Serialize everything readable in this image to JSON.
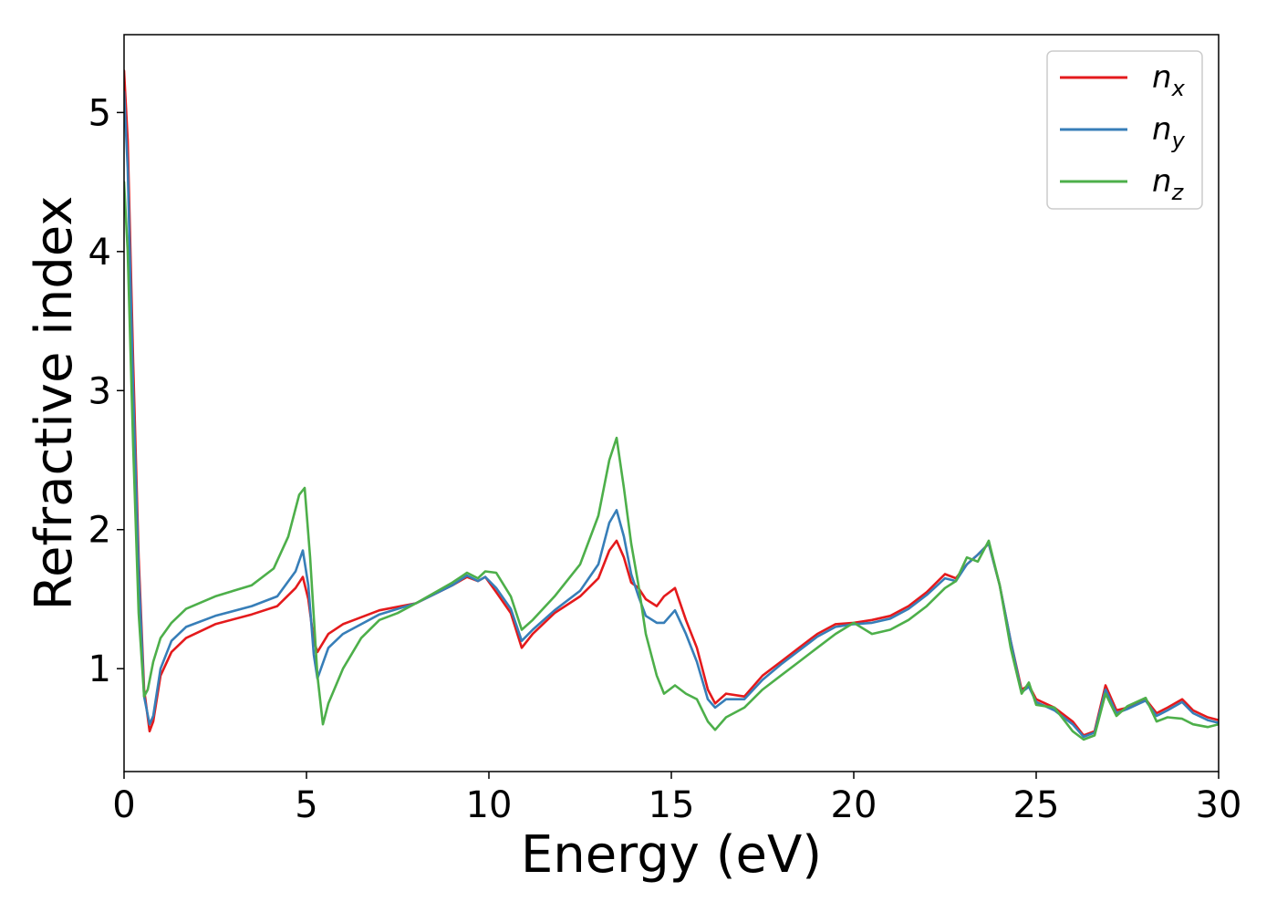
{
  "chart_data": {
    "type": "line",
    "title": "",
    "xlabel": "Energy (eV)",
    "ylabel": "Refractive index",
    "xlim": [
      0,
      30
    ],
    "ylim": [
      0.26,
      5.56
    ],
    "xticks": [
      0,
      5,
      10,
      15,
      20,
      25,
      30
    ],
    "yticks": [
      1,
      2,
      3,
      4,
      5
    ],
    "grid": false,
    "legend": {
      "placement": "top-right"
    },
    "series": [
      {
        "name": "n_x",
        "label_main": "n",
        "label_sub": "x",
        "color": "#e41a1c",
        "points": [
          [
            0,
            5.3
          ],
          [
            0.1,
            4.8
          ],
          [
            0.25,
            3.2
          ],
          [
            0.4,
            1.8
          ],
          [
            0.55,
            0.85
          ],
          [
            0.7,
            0.55
          ],
          [
            0.8,
            0.62
          ],
          [
            1.0,
            0.95
          ],
          [
            1.3,
            1.12
          ],
          [
            1.7,
            1.22
          ],
          [
            2.5,
            1.32
          ],
          [
            3.5,
            1.39
          ],
          [
            4.2,
            1.45
          ],
          [
            4.7,
            1.58
          ],
          [
            4.9,
            1.66
          ],
          [
            5.05,
            1.5
          ],
          [
            5.2,
            1.2
          ],
          [
            5.3,
            1.12
          ],
          [
            5.6,
            1.25
          ],
          [
            6.0,
            1.32
          ],
          [
            7.0,
            1.42
          ],
          [
            8.0,
            1.47
          ],
          [
            9.0,
            1.6
          ],
          [
            9.4,
            1.66
          ],
          [
            9.7,
            1.63
          ],
          [
            9.9,
            1.66
          ],
          [
            10.2,
            1.55
          ],
          [
            10.6,
            1.4
          ],
          [
            10.9,
            1.15
          ],
          [
            11.2,
            1.25
          ],
          [
            11.8,
            1.4
          ],
          [
            12.5,
            1.52
          ],
          [
            13.0,
            1.65
          ],
          [
            13.3,
            1.85
          ],
          [
            13.5,
            1.92
          ],
          [
            13.7,
            1.8
          ],
          [
            13.9,
            1.62
          ],
          [
            14.1,
            1.58
          ],
          [
            14.3,
            1.5
          ],
          [
            14.6,
            1.45
          ],
          [
            14.8,
            1.52
          ],
          [
            15.1,
            1.58
          ],
          [
            15.4,
            1.35
          ],
          [
            15.7,
            1.15
          ],
          [
            16.0,
            0.85
          ],
          [
            16.2,
            0.75
          ],
          [
            16.5,
            0.82
          ],
          [
            17.0,
            0.8
          ],
          [
            17.5,
            0.95
          ],
          [
            18.0,
            1.05
          ],
          [
            18.5,
            1.15
          ],
          [
            19.0,
            1.25
          ],
          [
            19.5,
            1.32
          ],
          [
            20.0,
            1.33
          ],
          [
            20.5,
            1.35
          ],
          [
            21.0,
            1.38
          ],
          [
            21.5,
            1.45
          ],
          [
            22.0,
            1.55
          ],
          [
            22.5,
            1.68
          ],
          [
            22.8,
            1.65
          ],
          [
            23.1,
            1.75
          ],
          [
            23.4,
            1.82
          ],
          [
            23.7,
            1.9
          ],
          [
            24.0,
            1.6
          ],
          [
            24.3,
            1.2
          ],
          [
            24.6,
            0.85
          ],
          [
            24.8,
            0.88
          ],
          [
            25.0,
            0.78
          ],
          [
            25.5,
            0.72
          ],
          [
            26.0,
            0.62
          ],
          [
            26.3,
            0.52
          ],
          [
            26.6,
            0.55
          ],
          [
            26.9,
            0.88
          ],
          [
            27.2,
            0.7
          ],
          [
            27.5,
            0.72
          ],
          [
            28.0,
            0.78
          ],
          [
            28.3,
            0.68
          ],
          [
            28.6,
            0.72
          ],
          [
            29.0,
            0.78
          ],
          [
            29.3,
            0.7
          ],
          [
            29.7,
            0.65
          ],
          [
            30.0,
            0.63
          ]
        ]
      },
      {
        "name": "n_y",
        "label_main": "n",
        "label_sub": "y",
        "color": "#377eb8",
        "points": [
          [
            0,
            5.15
          ],
          [
            0.1,
            4.6
          ],
          [
            0.25,
            3.0
          ],
          [
            0.4,
            1.7
          ],
          [
            0.55,
            0.8
          ],
          [
            0.7,
            0.6
          ],
          [
            0.8,
            0.66
          ],
          [
            1.0,
            1.0
          ],
          [
            1.3,
            1.2
          ],
          [
            1.7,
            1.3
          ],
          [
            2.5,
            1.38
          ],
          [
            3.5,
            1.45
          ],
          [
            4.2,
            1.52
          ],
          [
            4.7,
            1.7
          ],
          [
            4.9,
            1.85
          ],
          [
            5.05,
            1.6
          ],
          [
            5.2,
            1.1
          ],
          [
            5.3,
            0.93
          ],
          [
            5.6,
            1.15
          ],
          [
            6.0,
            1.25
          ],
          [
            7.0,
            1.39
          ],
          [
            8.0,
            1.47
          ],
          [
            9.0,
            1.6
          ],
          [
            9.4,
            1.67
          ],
          [
            9.7,
            1.63
          ],
          [
            9.9,
            1.66
          ],
          [
            10.2,
            1.58
          ],
          [
            10.6,
            1.43
          ],
          [
            10.9,
            1.2
          ],
          [
            11.2,
            1.28
          ],
          [
            11.8,
            1.42
          ],
          [
            12.5,
            1.56
          ],
          [
            13.0,
            1.75
          ],
          [
            13.3,
            2.05
          ],
          [
            13.5,
            2.14
          ],
          [
            13.7,
            1.95
          ],
          [
            13.9,
            1.68
          ],
          [
            14.1,
            1.52
          ],
          [
            14.3,
            1.38
          ],
          [
            14.6,
            1.33
          ],
          [
            14.8,
            1.33
          ],
          [
            15.1,
            1.42
          ],
          [
            15.4,
            1.25
          ],
          [
            15.7,
            1.05
          ],
          [
            16.0,
            0.78
          ],
          [
            16.2,
            0.72
          ],
          [
            16.5,
            0.78
          ],
          [
            17.0,
            0.78
          ],
          [
            17.5,
            0.92
          ],
          [
            18.0,
            1.03
          ],
          [
            18.5,
            1.13
          ],
          [
            19.0,
            1.23
          ],
          [
            19.5,
            1.3
          ],
          [
            20.0,
            1.32
          ],
          [
            20.5,
            1.33
          ],
          [
            21.0,
            1.36
          ],
          [
            21.5,
            1.43
          ],
          [
            22.0,
            1.53
          ],
          [
            22.5,
            1.65
          ],
          [
            22.8,
            1.63
          ],
          [
            23.1,
            1.75
          ],
          [
            23.4,
            1.82
          ],
          [
            23.7,
            1.9
          ],
          [
            24.0,
            1.6
          ],
          [
            24.3,
            1.2
          ],
          [
            24.6,
            0.83
          ],
          [
            24.8,
            0.87
          ],
          [
            25.0,
            0.76
          ],
          [
            25.5,
            0.7
          ],
          [
            26.0,
            0.6
          ],
          [
            26.3,
            0.51
          ],
          [
            26.6,
            0.54
          ],
          [
            26.9,
            0.85
          ],
          [
            27.2,
            0.68
          ],
          [
            27.5,
            0.71
          ],
          [
            28.0,
            0.77
          ],
          [
            28.3,
            0.66
          ],
          [
            28.6,
            0.7
          ],
          [
            29.0,
            0.76
          ],
          [
            29.3,
            0.68
          ],
          [
            29.7,
            0.63
          ],
          [
            30.0,
            0.61
          ]
        ]
      },
      {
        "name": "n_z",
        "label_main": "n",
        "label_sub": "z",
        "color": "#4daf4a",
        "points": [
          [
            0,
            4.5
          ],
          [
            0.1,
            4.0
          ],
          [
            0.25,
            2.6
          ],
          [
            0.4,
            1.4
          ],
          [
            0.55,
            0.8
          ],
          [
            0.65,
            0.85
          ],
          [
            0.8,
            1.05
          ],
          [
            1.0,
            1.22
          ],
          [
            1.3,
            1.33
          ],
          [
            1.7,
            1.43
          ],
          [
            2.5,
            1.52
          ],
          [
            3.5,
            1.6
          ],
          [
            4.1,
            1.72
          ],
          [
            4.5,
            1.95
          ],
          [
            4.8,
            2.25
          ],
          [
            4.95,
            2.3
          ],
          [
            5.1,
            1.8
          ],
          [
            5.3,
            0.95
          ],
          [
            5.45,
            0.6
          ],
          [
            5.6,
            0.75
          ],
          [
            6.0,
            1.0
          ],
          [
            6.5,
            1.22
          ],
          [
            7.0,
            1.35
          ],
          [
            7.5,
            1.4
          ],
          [
            8.0,
            1.47
          ],
          [
            9.0,
            1.62
          ],
          [
            9.4,
            1.69
          ],
          [
            9.7,
            1.65
          ],
          [
            9.9,
            1.7
          ],
          [
            10.2,
            1.69
          ],
          [
            10.6,
            1.52
          ],
          [
            10.9,
            1.28
          ],
          [
            11.2,
            1.35
          ],
          [
            11.8,
            1.52
          ],
          [
            12.5,
            1.75
          ],
          [
            13.0,
            2.1
          ],
          [
            13.3,
            2.5
          ],
          [
            13.5,
            2.66
          ],
          [
            13.7,
            2.3
          ],
          [
            13.9,
            1.9
          ],
          [
            14.1,
            1.6
          ],
          [
            14.3,
            1.25
          ],
          [
            14.6,
            0.95
          ],
          [
            14.8,
            0.82
          ],
          [
            15.1,
            0.88
          ],
          [
            15.4,
            0.82
          ],
          [
            15.7,
            0.78
          ],
          [
            16.0,
            0.62
          ],
          [
            16.2,
            0.56
          ],
          [
            16.5,
            0.65
          ],
          [
            17.0,
            0.72
          ],
          [
            17.5,
            0.85
          ],
          [
            18.0,
            0.95
          ],
          [
            18.5,
            1.05
          ],
          [
            19.0,
            1.15
          ],
          [
            19.5,
            1.25
          ],
          [
            20.0,
            1.33
          ],
          [
            20.5,
            1.25
          ],
          [
            21.0,
            1.28
          ],
          [
            21.5,
            1.35
          ],
          [
            22.0,
            1.45
          ],
          [
            22.5,
            1.58
          ],
          [
            22.8,
            1.63
          ],
          [
            23.1,
            1.8
          ],
          [
            23.4,
            1.77
          ],
          [
            23.7,
            1.92
          ],
          [
            24.0,
            1.6
          ],
          [
            24.3,
            1.15
          ],
          [
            24.6,
            0.82
          ],
          [
            24.8,
            0.9
          ],
          [
            25.0,
            0.74
          ],
          [
            25.5,
            0.72
          ],
          [
            26.0,
            0.55
          ],
          [
            26.3,
            0.49
          ],
          [
            26.6,
            0.52
          ],
          [
            26.9,
            0.82
          ],
          [
            27.2,
            0.66
          ],
          [
            27.5,
            0.73
          ],
          [
            28.0,
            0.79
          ],
          [
            28.3,
            0.62
          ],
          [
            28.6,
            0.65
          ],
          [
            29.0,
            0.64
          ],
          [
            29.3,
            0.6
          ],
          [
            29.7,
            0.58
          ],
          [
            30.0,
            0.6
          ]
        ]
      }
    ]
  }
}
